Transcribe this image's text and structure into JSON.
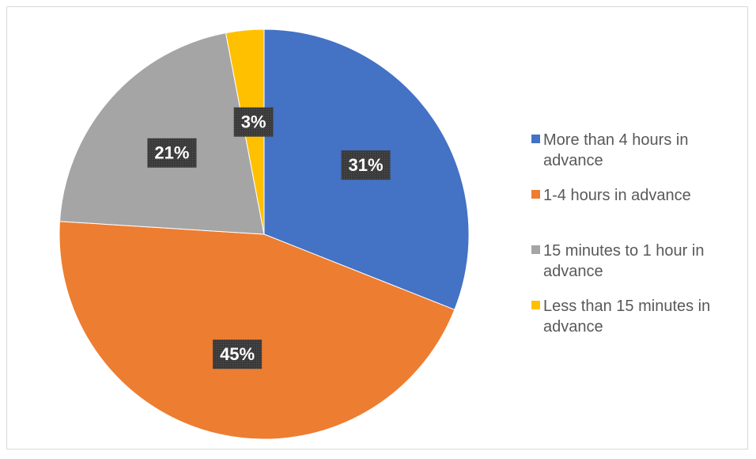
{
  "chart_data": {
    "type": "pie",
    "categories": [
      "More than 4 hours in advance",
      "1-4 hours in advance",
      "15 minutes to 1 hour in advance",
      "Less than 15 minutes in advance"
    ],
    "values": [
      31,
      45,
      21,
      3
    ],
    "data_labels": [
      "31%",
      "45%",
      "21%",
      "3%"
    ],
    "colors": [
      "#4472c4",
      "#ed7d31",
      "#a5a5a5",
      "#ffc000"
    ],
    "label_background": "#404040",
    "legend_position": "right"
  }
}
